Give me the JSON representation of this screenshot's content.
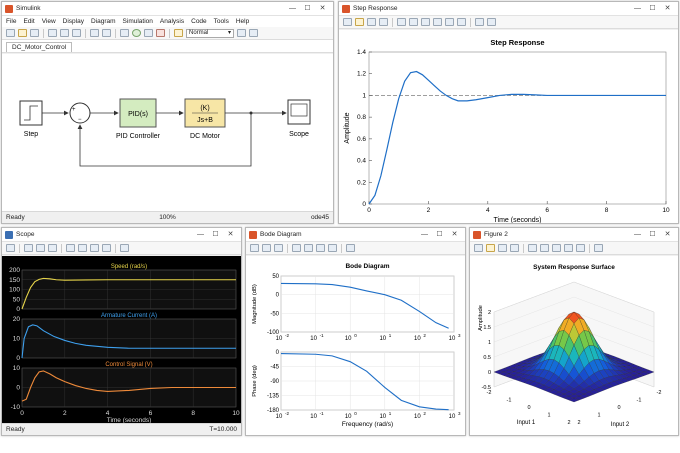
{
  "simulink": {
    "title": "Simulink",
    "menu": [
      "File",
      "Edit",
      "View",
      "Display",
      "Diagram",
      "Simulation",
      "Analysis",
      "Code",
      "Tools",
      "Help"
    ],
    "sim_mode": "Normal",
    "model_tab": "DC_Motor_Control",
    "blocks": {
      "step": "Step",
      "pid_inner": "PID(s)",
      "pid_label": "PID Controller",
      "plant_num": "(K)",
      "plant_den": "Js+B",
      "plant_label": "DC Motor",
      "scope": "Scope",
      "sum_plus": "+",
      "sum_minus": "−"
    },
    "status": {
      "left": "Ready",
      "zoom": "100%",
      "solver": "ode45"
    }
  },
  "step_window": {
    "title": "Step Response"
  },
  "scope_window": {
    "title": "Scope",
    "status_left": "Ready",
    "status_right": "T=10.000"
  },
  "bode_window": {
    "title": "Bode Diagram"
  },
  "fig2_window": {
    "title": "Figure 2"
  },
  "colors": {
    "plot_blue": "#1f6fc7",
    "scope_yellow": "#e6d44a",
    "scope_blue": "#3ea0ee",
    "scope_orange": "#ee8a3a",
    "block_green": "#d4ecc0",
    "block_yellow": "#f7e6a6"
  },
  "chart_data": [
    {
      "id": "step",
      "type": "line",
      "title": "Step Response",
      "xlabel": "Time (seconds)",
      "ylabel": "Amplitude",
      "xlim": [
        0,
        10
      ],
      "ylim": [
        0,
        1.4
      ],
      "x_ticks": [
        0,
        2,
        4,
        6,
        8,
        10
      ],
      "y_ticks": [
        0,
        0.2,
        0.4,
        0.6,
        0.8,
        1,
        1.2,
        1.4
      ],
      "reference": 1,
      "grid": false,
      "series": [
        {
          "x": [
            0,
            0.2,
            0.4,
            0.6,
            0.8,
            1.0,
            1.2,
            1.4,
            1.6,
            1.8,
            2.0,
            2.2,
            2.4,
            2.6,
            2.8,
            3.0,
            3.3,
            3.6,
            4.0,
            4.4,
            4.8,
            5.2,
            5.6,
            6.0,
            7.0,
            8.0,
            9.0,
            10.0
          ],
          "y": [
            0,
            0.08,
            0.26,
            0.5,
            0.75,
            0.97,
            1.13,
            1.21,
            1.22,
            1.19,
            1.14,
            1.09,
            1.04,
            1.0,
            0.97,
            0.95,
            0.95,
            0.96,
            0.98,
            1.0,
            1.01,
            1.01,
            1.005,
            1.0,
            1.0,
            1.0,
            1.0,
            1.0
          ]
        }
      ]
    },
    {
      "id": "scope",
      "type": "line",
      "panels": [
        {
          "title": "Speed (rad/s)",
          "ylim": [
            0,
            200
          ],
          "y_ticks": [
            0,
            50,
            100,
            150,
            200
          ],
          "x": [
            0,
            0.2,
            0.4,
            0.6,
            0.8,
            1,
            1.3,
            1.6,
            2,
            3,
            4,
            5,
            6,
            7,
            8,
            9,
            10
          ],
          "y": [
            0,
            60,
            110,
            140,
            152,
            157,
            155,
            150,
            148,
            149,
            150,
            150,
            150,
            150,
            150,
            150,
            150
          ]
        },
        {
          "title": "Armature Current (A)",
          "ylim": [
            0,
            20
          ],
          "y_ticks": [
            0,
            10,
            20
          ],
          "x": [
            0,
            0.1,
            0.3,
            0.5,
            0.7,
            1,
            1.5,
            2,
            2.5,
            3,
            4,
            5,
            6,
            7,
            8,
            9,
            10
          ],
          "y": [
            0,
            10,
            16,
            17,
            16.5,
            14,
            11,
            9,
            7.5,
            6.5,
            5.5,
            5,
            5,
            5,
            5,
            5,
            5
          ]
        },
        {
          "title": "Control Signal (V)",
          "ylim": [
            -10,
            10
          ],
          "y_ticks": [
            -10,
            0,
            10
          ],
          "x": [
            0,
            0.2,
            0.4,
            0.6,
            0.8,
            1.0,
            1.3,
            1.6,
            2,
            2.5,
            3,
            3.5,
            4,
            5,
            6,
            7,
            8,
            9,
            10
          ],
          "y": [
            -7,
            -6,
            0,
            5,
            8,
            8.5,
            7,
            5,
            3,
            1,
            -0.5,
            -1.5,
            -2,
            -1.5,
            -0.5,
            0,
            0,
            0,
            0
          ]
        }
      ],
      "xlabel": "Time (seconds)",
      "xlim": [
        0,
        10
      ],
      "x_ticks": [
        0,
        2,
        4,
        6,
        8,
        10
      ]
    },
    {
      "id": "bode",
      "type": "line",
      "title": "Bode Diagram",
      "xlabel": "Frequency (rad/s)",
      "x_scale": "log",
      "xlim": [
        0.01,
        1000
      ],
      "x_tick_labels": [
        "10^-2",
        "10^-1",
        "10^0",
        "10^1",
        "10^2",
        "10^3"
      ],
      "magnitude": {
        "ylabel": "Magnitude (dB)",
        "ylim": [
          -100,
          50
        ],
        "y_ticks": [
          50,
          0,
          -50,
          -100
        ],
        "freq": [
          0.01,
          0.1,
          0.3,
          1,
          3,
          10,
          30,
          100,
          300,
          700
        ],
        "db": [
          30,
          29,
          27,
          20,
          10,
          0,
          -15,
          -45,
          -75,
          -90
        ]
      },
      "phase": {
        "ylabel": "Phase (deg)",
        "ylim": [
          -180,
          0
        ],
        "y_ticks": [
          0,
          -45,
          -90,
          -135,
          -180
        ],
        "freq": [
          0.01,
          0.1,
          0.3,
          1,
          3,
          10,
          30,
          100,
          300,
          700
        ],
        "deg": [
          -5,
          -7,
          -12,
          -30,
          -60,
          -110,
          -150,
          -170,
          -177,
          -179
        ]
      }
    },
    {
      "id": "surface",
      "type": "surface",
      "title": "System Response Surface",
      "xlabel": "Input 1",
      "ylabel": "Input 2",
      "zlabel": "Amplitude",
      "xlim": [
        -2,
        2
      ],
      "ylim": [
        -2,
        2
      ],
      "zlim": [
        -0.5,
        2
      ],
      "z_ticks": [
        -0.5,
        0,
        0.5,
        1,
        1.5,
        2
      ],
      "x_ticks": [
        -2,
        -1,
        0,
        1,
        2
      ],
      "y_ticks": [
        -2,
        -1,
        0,
        1,
        2
      ],
      "peak": 2,
      "function": "gaussian"
    }
  ]
}
